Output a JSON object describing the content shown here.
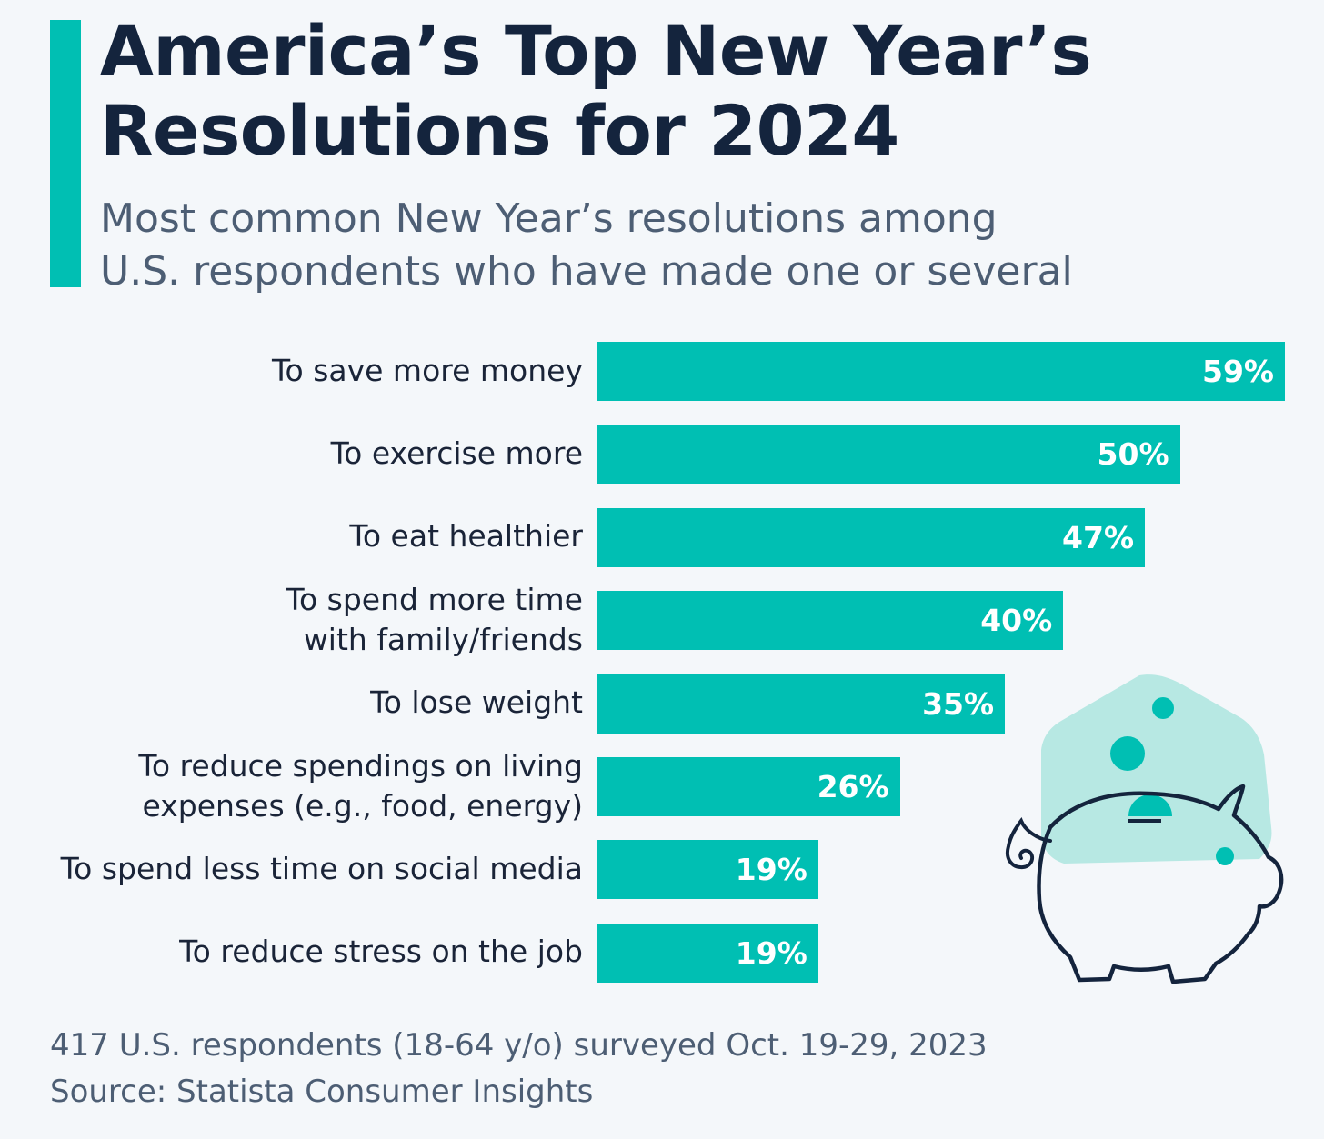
{
  "header": {
    "title_line1": "America’s Top New Year’s",
    "title_line2": "Resolutions for 2024",
    "subtitle_line1": "Most common New Year’s resolutions among",
    "subtitle_line2": "U.S. respondents who have made one or several"
  },
  "colors": {
    "bar": "#00bfb3",
    "accent": "#00bfb3",
    "piggy_bg": "#b7e8e3",
    "piggy_outline": "#14243d"
  },
  "icons": {
    "illustration": "piggy-bank-icon"
  },
  "chart_data": {
    "type": "bar",
    "orientation": "horizontal",
    "categories": [
      [
        "To save more money"
      ],
      [
        "To exercise more"
      ],
      [
        "To eat healthier"
      ],
      [
        "To spend more time",
        "with family/friends"
      ],
      [
        "To lose weight"
      ],
      [
        "To reduce spendings on living",
        "expenses (e.g., food, energy)"
      ],
      [
        "To spend less time on social media"
      ],
      [
        "To reduce stress on the job"
      ]
    ],
    "values": [
      59,
      50,
      47,
      40,
      35,
      26,
      19,
      19
    ],
    "value_labels": [
      "59%",
      "50%",
      "47%",
      "40%",
      "35%",
      "26%",
      "19%",
      "19%"
    ],
    "unit": "%",
    "xlim": [
      0,
      59
    ]
  },
  "footer": {
    "note": "417 U.S. respondents (18-64 y/o) surveyed Oct. 19-29, 2023",
    "source": "Source: Statista Consumer Insights"
  }
}
